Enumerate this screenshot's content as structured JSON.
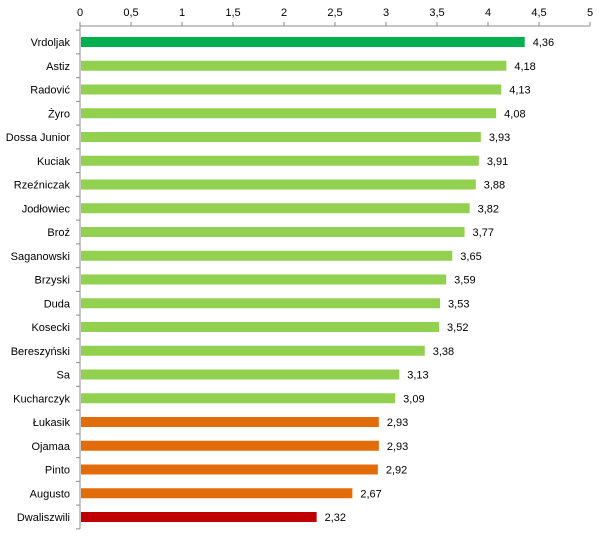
{
  "chart_data": {
    "type": "bar",
    "orientation": "horizontal",
    "x_axis_position": "top",
    "xlim": [
      0,
      5
    ],
    "x_ticks": [
      "0",
      "0,5",
      "1",
      "1,5",
      "2",
      "2,5",
      "3",
      "3,5",
      "4",
      "4,5",
      "5"
    ],
    "grid": false,
    "legend": "none",
    "bars": [
      {
        "label": "Vrdoljak",
        "value": 4.36,
        "value_label": "4,36",
        "color": "#00b050"
      },
      {
        "label": "Astiz",
        "value": 4.18,
        "value_label": "4,18",
        "color": "#92d050"
      },
      {
        "label": "Radović",
        "value": 4.13,
        "value_label": "4,13",
        "color": "#92d050"
      },
      {
        "label": "Żyro",
        "value": 4.08,
        "value_label": "4,08",
        "color": "#92d050"
      },
      {
        "label": "Dossa Junior",
        "value": 3.93,
        "value_label": "3,93",
        "color": "#92d050"
      },
      {
        "label": "Kuciak",
        "value": 3.91,
        "value_label": "3,91",
        "color": "#92d050"
      },
      {
        "label": "Rzeźniczak",
        "value": 3.88,
        "value_label": "3,88",
        "color": "#92d050"
      },
      {
        "label": "Jodłowiec",
        "value": 3.82,
        "value_label": "3,82",
        "color": "#92d050"
      },
      {
        "label": "Broź",
        "value": 3.77,
        "value_label": "3,77",
        "color": "#92d050"
      },
      {
        "label": "Saganowski",
        "value": 3.65,
        "value_label": "3,65",
        "color": "#92d050"
      },
      {
        "label": "Brzyski",
        "value": 3.59,
        "value_label": "3,59",
        "color": "#92d050"
      },
      {
        "label": "Duda",
        "value": 3.53,
        "value_label": "3,53",
        "color": "#92d050"
      },
      {
        "label": "Kosecki",
        "value": 3.52,
        "value_label": "3,52",
        "color": "#92d050"
      },
      {
        "label": "Bereszyński",
        "value": 3.38,
        "value_label": "3,38",
        "color": "#92d050"
      },
      {
        "label": "Sa",
        "value": 3.13,
        "value_label": "3,13",
        "color": "#92d050"
      },
      {
        "label": "Kucharczyk",
        "value": 3.09,
        "value_label": "3,09",
        "color": "#92d050"
      },
      {
        "label": "Łukasik",
        "value": 2.93,
        "value_label": "2,93",
        "color": "#e36c0a"
      },
      {
        "label": "Ojamaa",
        "value": 2.93,
        "value_label": "2,93",
        "color": "#e36c0a"
      },
      {
        "label": "Pinto",
        "value": 2.92,
        "value_label": "2,92",
        "color": "#e36c0a"
      },
      {
        "label": "Augusto",
        "value": 2.67,
        "value_label": "2,67",
        "color": "#e36c0a"
      },
      {
        "label": "Dwaliszwili",
        "value": 2.32,
        "value_label": "2,32",
        "color": "#c00000"
      }
    ]
  }
}
